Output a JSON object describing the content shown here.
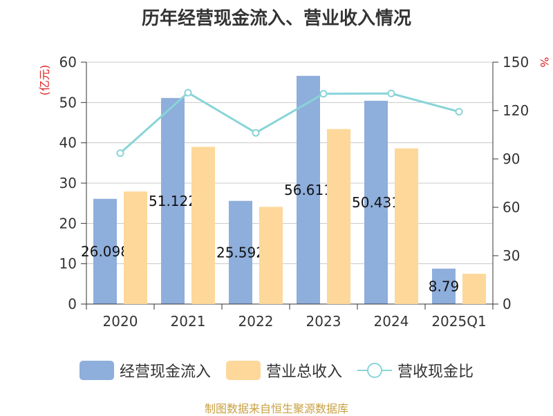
{
  "title": "历年经营现金流入、营业收入情况",
  "source": "制图数据来自恒生聚源数据库",
  "chart_data": {
    "type": "bar",
    "title": "历年经营现金流入、营业收入情况",
    "categories": [
      "2020",
      "2021",
      "2022",
      "2023",
      "2024",
      "2025Q1"
    ],
    "series": [
      {
        "name": "经营现金流入",
        "type": "bar",
        "axis": "left",
        "color": "#8eaedc",
        "values": [
          26.098,
          51.122,
          25.592,
          56.611,
          50.431,
          8.79
        ],
        "labels": [
          "26.098",
          "51.122",
          "25.592",
          "56.611",
          "50.431",
          "8.79"
        ]
      },
      {
        "name": "营业总收入",
        "type": "bar",
        "axis": "left",
        "color": "#fdd89a",
        "values": [
          27.9,
          39.0,
          24.1,
          43.4,
          38.6,
          7.5
        ]
      },
      {
        "name": "营收现金比",
        "type": "line",
        "axis": "right",
        "color": "#88d4d8",
        "values": [
          93.6,
          131.1,
          106.2,
          130.4,
          130.6,
          119.3
        ]
      }
    ],
    "ylim_left": [
      0,
      60
    ],
    "yticks_left": [
      "0",
      "10",
      "20",
      "30",
      "40",
      "50",
      "60"
    ],
    "ylabel_left": "(亿元)",
    "ylim_right": [
      0,
      150
    ],
    "yticks_right": [
      "0",
      "30",
      "60",
      "90",
      "120",
      "150"
    ],
    "ylabel_right": "%",
    "grid": true,
    "legend_position": "bottom"
  }
}
